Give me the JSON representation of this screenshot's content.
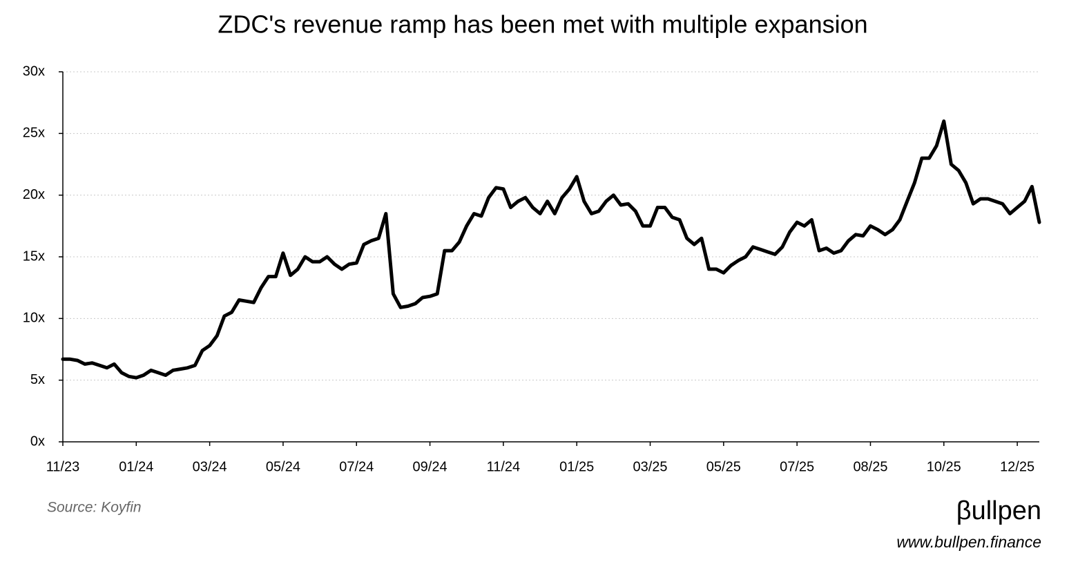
{
  "chart_data": {
    "type": "line",
    "title": "ZDC's revenue ramp has been met with multiple expansion",
    "categories": [
      "11/23",
      null,
      null,
      null,
      null,
      null,
      null,
      null,
      null,
      null,
      "01/24",
      null,
      null,
      null,
      null,
      null,
      null,
      null,
      null,
      null,
      "03/24",
      null,
      null,
      null,
      null,
      null,
      null,
      null,
      null,
      null,
      "05/24",
      null,
      null,
      null,
      null,
      null,
      null,
      null,
      null,
      null,
      "07/24",
      null,
      null,
      null,
      null,
      null,
      null,
      null,
      null,
      null,
      "09/24",
      null,
      null,
      null,
      null,
      null,
      null,
      null,
      null,
      null,
      "11/24",
      null,
      null,
      null,
      null,
      null,
      null,
      null,
      null,
      null,
      "01/25",
      null,
      null,
      null,
      null,
      null,
      null,
      null,
      null,
      null,
      "03/25",
      null,
      null,
      null,
      null,
      null,
      null,
      null,
      null,
      null,
      "05/25",
      null,
      null,
      null,
      null,
      null,
      null,
      null,
      null,
      null,
      "07/25",
      null,
      null,
      null,
      null,
      null,
      null,
      null,
      null,
      null,
      "08/25",
      null,
      null,
      null,
      null,
      null,
      null,
      null,
      null,
      null,
      "10/25",
      null,
      null,
      null,
      null,
      null,
      null,
      null,
      null,
      null,
      "12/25",
      null,
      null,
      null
    ],
    "series": [
      {
        "color": "#000000",
        "values": [
          6.7,
          6.7,
          6.6,
          6.3,
          6.4,
          6.2,
          6.0,
          6.3,
          5.6,
          5.3,
          5.2,
          5.4,
          5.8,
          5.6,
          5.4,
          5.8,
          5.9,
          6.0,
          6.2,
          7.4,
          7.8,
          8.6,
          10.2,
          10.5,
          11.5,
          11.4,
          11.3,
          12.5,
          13.4,
          13.4,
          15.3,
          13.5,
          14.0,
          15.0,
          14.6,
          14.6,
          15.0,
          14.4,
          14.0,
          14.4,
          14.5,
          16.0,
          16.3,
          16.5,
          18.5,
          12.0,
          10.9,
          11.0,
          11.2,
          11.7,
          11.8,
          12.0,
          15.5,
          15.5,
          16.2,
          17.5,
          18.5,
          18.3,
          19.8,
          20.6,
          20.5,
          19.0,
          19.5,
          19.8,
          19.0,
          18.5,
          19.5,
          18.5,
          19.8,
          20.5,
          21.5,
          19.5,
          18.5,
          18.7,
          19.5,
          20.0,
          19.2,
          19.3,
          18.7,
          17.5,
          17.5,
          19.0,
          19.0,
          18.2,
          18.0,
          16.5,
          16.0,
          16.5,
          14.0,
          14.0,
          13.7,
          14.3,
          14.7,
          15.0,
          15.8,
          15.6,
          15.4,
          15.2,
          15.8,
          17.0,
          17.8,
          17.5,
          18.0,
          15.5,
          15.7,
          15.3,
          15.5,
          16.3,
          16.8,
          16.7,
          17.5,
          17.2,
          16.8,
          17.2,
          18.0,
          19.5,
          21.0,
          23.0,
          23.0,
          24.0,
          26.0,
          22.5,
          22.0,
          21.0,
          19.3,
          19.7,
          19.7,
          19.5,
          19.3,
          18.5,
          19.0,
          19.5,
          20.7,
          17.8
        ]
      }
    ],
    "ylim": [
      0,
      30
    ],
    "yticks": [
      {
        "value": 0,
        "label": "0x"
      },
      {
        "value": 5,
        "label": "5x"
      },
      {
        "value": 10,
        "label": "10x"
      },
      {
        "value": 15,
        "label": "15x"
      },
      {
        "value": 20,
        "label": "20x"
      },
      {
        "value": 25,
        "label": "25x"
      },
      {
        "value": 30,
        "label": "30x"
      }
    ],
    "grid": true,
    "source": "Source: Koyfin",
    "logo": "βullpen",
    "website": "www.bullpen.finance"
  }
}
